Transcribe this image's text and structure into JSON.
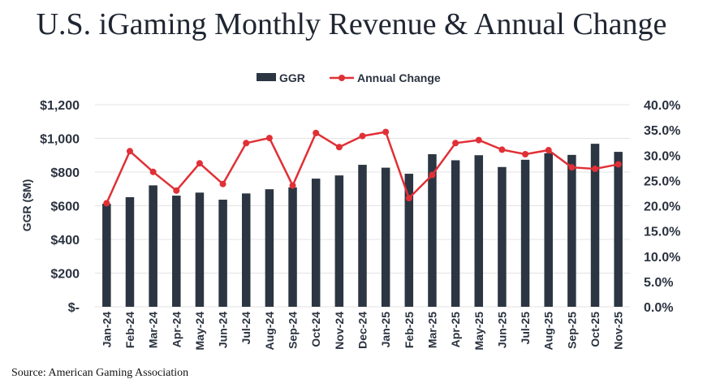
{
  "colors": {
    "bar": "#2c3542",
    "line": "#e03036",
    "grid": "#e3e3e3",
    "text": "#2b3340"
  },
  "chart_data": {
    "type": "bar",
    "title": "U.S. iGaming Monthly Revenue & Annual Change",
    "source": "Source: American Gaming Association",
    "ylabel": "GGR ($M)",
    "categories": [
      "Jan-24",
      "Feb-24",
      "Mar-24",
      "Apr-24",
      "May-24",
      "Jun-24",
      "Jul-24",
      "Aug-24",
      "Sep-24",
      "Oct-24",
      "Nov-24",
      "Dec-24",
      "Jan-25",
      "Feb-25",
      "Mar-25",
      "Apr-25",
      "May-25",
      "Jun-25",
      "Jul-25",
      "Aug-25",
      "Sep-25",
      "Oct-25",
      "Nov-25"
    ],
    "series": [
      {
        "name": "GGR",
        "type": "bar",
        "axis": "left",
        "values": [
          612,
          651,
          721,
          660,
          678,
          636,
          673,
          698,
          709,
          761,
          780,
          843,
          826,
          790,
          906,
          870,
          900,
          830,
          873,
          912,
          902,
          968,
          920
        ]
      },
      {
        "name": "Annual Change",
        "type": "line",
        "axis": "right",
        "values": [
          20.5,
          30.8,
          26.7,
          23.0,
          28.4,
          24.3,
          32.4,
          33.4,
          24.0,
          34.4,
          31.6,
          33.8,
          34.6,
          21.5,
          26.1,
          32.4,
          33.0,
          31.1,
          30.2,
          31.0,
          27.6,
          27.3,
          28.2
        ]
      }
    ],
    "ylim_left": [
      0,
      1200
    ],
    "ylim_right": [
      0,
      40
    ],
    "left_ticks": [
      0,
      200,
      400,
      600,
      800,
      1000,
      1200
    ],
    "left_tick_labels": [
      "$-",
      "$200",
      "$400",
      "$600",
      "$800",
      "$1,000",
      "$1,200"
    ],
    "right_ticks": [
      0,
      5,
      10,
      15,
      20,
      25,
      30,
      35,
      40
    ],
    "right_tick_labels": [
      "0.0%",
      "5.0%",
      "10.0%",
      "15.0%",
      "20.0%",
      "25.0%",
      "30.0%",
      "35.0%",
      "40.0%"
    ],
    "legend_position": "top-center",
    "grid": true
  }
}
